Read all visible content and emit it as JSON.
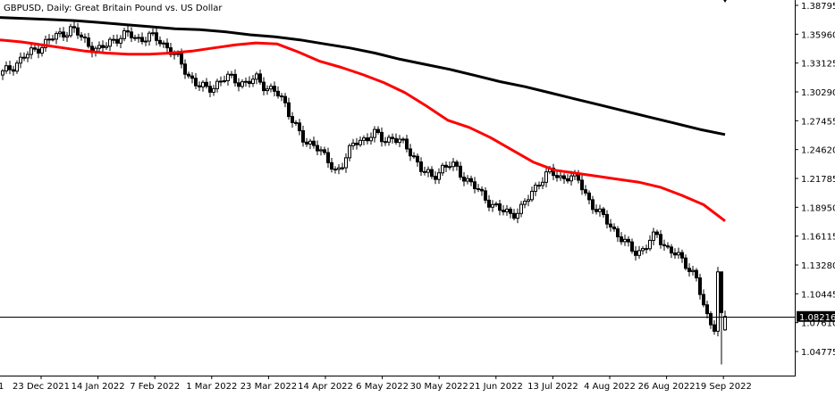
{
  "chart_data": {
    "type": "candlestick",
    "title": "GBPUSD, Daily:  Great Britain Pound vs. US Dollar",
    "symbol": "GBPUSD",
    "timeframe": "Daily",
    "description": "Great Britain Pound vs. US Dollar",
    "ylim": [
      1.039,
      1.39
    ],
    "y_ticks": [
      "1.38795",
      "1.35960",
      "1.33125",
      "1.30290",
      "1.27455",
      "1.24620",
      "1.21785",
      "1.18950",
      "1.16115",
      "1.13280",
      "1.10445",
      "1.07610",
      "1.04775"
    ],
    "x_tick_labels": [
      "23 Dec 2021",
      "14 Jan 2022",
      "7 Feb 2022",
      "1 Mar 2022",
      "23 Mar 2022",
      "14 Apr 2022",
      "6 May 2022",
      "30 May 2022",
      "21 Jun 2022",
      "13 Jul 2022",
      "4 Aug 2022",
      "26 Aug 2022",
      "19 Sep 2022"
    ],
    "current_price": "1.08216",
    "grid": false,
    "colors": {
      "candles": "#000000",
      "ma_fast": "#ff0000",
      "ma_slow": "#000000",
      "price_line": "#000000",
      "price_label_bg": "#000000",
      "price_label_text": "#ffffff"
    },
    "ma_fast": {
      "period_label": "",
      "values": [
        1.354,
        1.352,
        1.349,
        1.346,
        1.343,
        1.341,
        1.34,
        1.34,
        1.341,
        1.343,
        1.346,
        1.349,
        1.351,
        1.35,
        1.342,
        1.333,
        1.327,
        1.32,
        1.312,
        1.302,
        1.289,
        1.275,
        1.268,
        1.258,
        1.246,
        1.234,
        1.226,
        1.223,
        1.22,
        1.217,
        1.214,
        1.209,
        1.201,
        1.192,
        1.176
      ]
    },
    "ma_slow": {
      "period_label": "",
      "values": [
        1.376,
        1.375,
        1.374,
        1.373,
        1.371,
        1.369,
        1.367,
        1.365,
        1.364,
        1.362,
        1.359,
        1.357,
        1.354,
        1.35,
        1.346,
        1.341,
        1.335,
        1.33,
        1.325,
        1.319,
        1.313,
        1.308,
        1.302,
        1.296,
        1.29,
        1.284,
        1.278,
        1.272,
        1.266,
        1.261
      ]
    },
    "close_path": [
      1.321,
      1.328,
      1.336,
      1.342,
      1.349,
      1.355,
      1.36,
      1.365,
      1.357,
      1.348,
      1.343,
      1.353,
      1.357,
      1.359,
      1.355,
      1.357,
      1.354,
      1.346,
      1.334,
      1.32,
      1.309,
      1.305,
      1.312,
      1.317,
      1.314,
      1.311,
      1.316,
      1.308,
      1.302,
      1.29,
      1.27,
      1.25,
      1.254,
      1.238,
      1.224,
      1.236,
      1.252,
      1.257,
      1.262,
      1.255,
      1.259,
      1.251,
      1.242,
      1.225,
      1.218,
      1.229,
      1.231,
      1.222,
      1.213,
      1.202,
      1.194,
      1.186,
      1.183,
      1.187,
      1.2,
      1.216,
      1.224,
      1.218,
      1.221,
      1.215,
      1.198,
      1.184,
      1.175,
      1.163,
      1.151,
      1.145,
      1.152,
      1.163,
      1.15,
      1.142,
      1.134,
      1.122,
      1.083,
      1.072,
      1.081
    ]
  }
}
